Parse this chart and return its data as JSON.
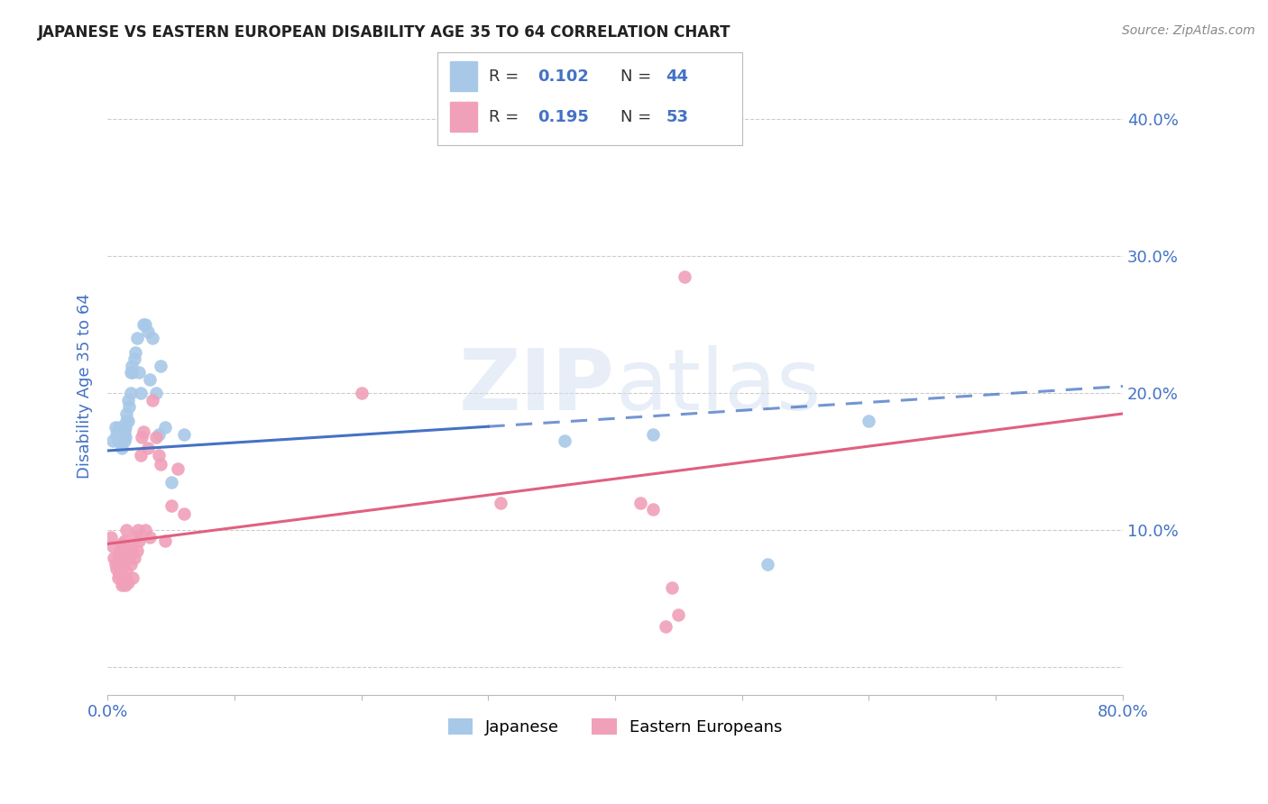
{
  "title": "JAPANESE VS EASTERN EUROPEAN DISABILITY AGE 35 TO 64 CORRELATION CHART",
  "source": "Source: ZipAtlas.com",
  "ylabel": "Disability Age 35 to 64",
  "xlim": [
    0.0,
    0.8
  ],
  "ylim": [
    -0.02,
    0.43
  ],
  "color_japanese": "#a8c8e8",
  "color_eastern": "#f0a0b8",
  "color_line_japanese": "#4472c4",
  "color_line_eastern": "#e06080",
  "color_axis_labels": "#4472c4",
  "watermark": "ZIPatlas",
  "japanese_x": [
    0.004,
    0.006,
    0.007,
    0.008,
    0.009,
    0.01,
    0.01,
    0.011,
    0.011,
    0.012,
    0.012,
    0.013,
    0.013,
    0.014,
    0.014,
    0.015,
    0.015,
    0.016,
    0.016,
    0.017,
    0.018,
    0.018,
    0.019,
    0.02,
    0.021,
    0.022,
    0.023,
    0.025,
    0.026,
    0.028,
    0.03,
    0.032,
    0.033,
    0.035,
    0.038,
    0.04,
    0.042,
    0.045,
    0.05,
    0.06,
    0.36,
    0.43,
    0.52,
    0.6
  ],
  "japanese_y": [
    0.165,
    0.175,
    0.17,
    0.165,
    0.175,
    0.165,
    0.17,
    0.16,
    0.172,
    0.168,
    0.175,
    0.172,
    0.165,
    0.175,
    0.168,
    0.18,
    0.185,
    0.195,
    0.18,
    0.19,
    0.2,
    0.215,
    0.22,
    0.215,
    0.225,
    0.23,
    0.24,
    0.215,
    0.2,
    0.25,
    0.25,
    0.245,
    0.21,
    0.24,
    0.2,
    0.17,
    0.22,
    0.175,
    0.135,
    0.17,
    0.165,
    0.17,
    0.075,
    0.18
  ],
  "eastern_x": [
    0.003,
    0.004,
    0.005,
    0.006,
    0.007,
    0.008,
    0.009,
    0.009,
    0.01,
    0.01,
    0.011,
    0.011,
    0.012,
    0.012,
    0.013,
    0.013,
    0.014,
    0.014,
    0.015,
    0.015,
    0.016,
    0.016,
    0.017,
    0.018,
    0.019,
    0.02,
    0.021,
    0.022,
    0.023,
    0.024,
    0.025,
    0.026,
    0.027,
    0.028,
    0.03,
    0.032,
    0.033,
    0.035,
    0.038,
    0.04,
    0.042,
    0.045,
    0.05,
    0.055,
    0.06,
    0.2,
    0.31,
    0.42,
    0.43,
    0.44,
    0.445,
    0.45,
    0.455
  ],
  "eastern_y": [
    0.095,
    0.088,
    0.08,
    0.075,
    0.072,
    0.065,
    0.068,
    0.082,
    0.07,
    0.085,
    0.06,
    0.09,
    0.062,
    0.075,
    0.065,
    0.092,
    0.06,
    0.078,
    0.07,
    0.1,
    0.062,
    0.088,
    0.08,
    0.075,
    0.085,
    0.065,
    0.08,
    0.095,
    0.085,
    0.1,
    0.092,
    0.155,
    0.168,
    0.172,
    0.1,
    0.16,
    0.095,
    0.195,
    0.168,
    0.155,
    0.148,
    0.092,
    0.118,
    0.145,
    0.112,
    0.2,
    0.12,
    0.12,
    0.115,
    0.03,
    0.058,
    0.038,
    0.285
  ],
  "line_japanese_x0": 0.0,
  "line_japanese_y0": 0.158,
  "line_japanese_x1": 0.8,
  "line_japanese_y1": 0.205,
  "line_japanese_solid_end": 0.3,
  "line_eastern_x0": 0.0,
  "line_eastern_y0": 0.09,
  "line_eastern_x1": 0.8,
  "line_eastern_y1": 0.185
}
